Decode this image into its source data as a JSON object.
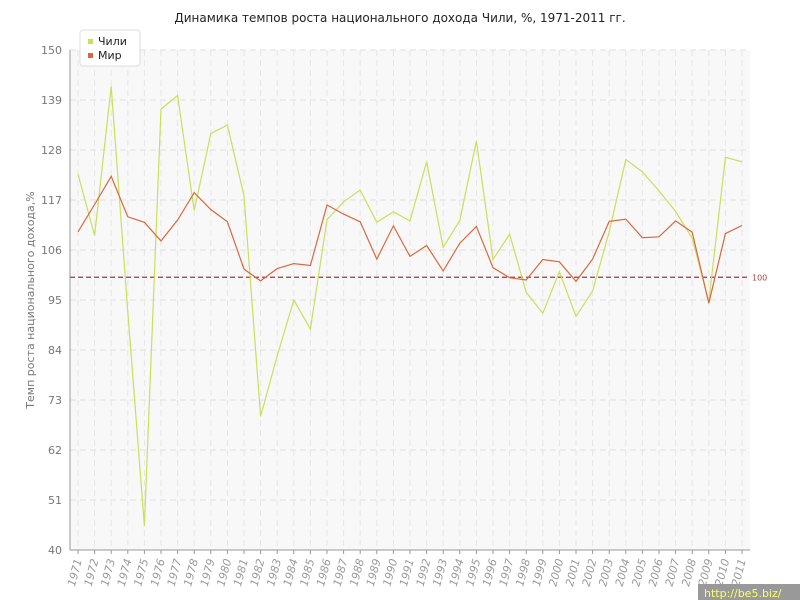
{
  "chart_data": {
    "type": "line",
    "title": "Динамика темпов роста национального дохода Чили, %, 1971-2011 гг.",
    "ylabel": "Темп роста национального дохода,%",
    "xlabel": "",
    "ylim": [
      40,
      150
    ],
    "yticks": [
      40,
      51,
      62,
      73,
      84,
      95,
      106,
      117,
      128,
      139,
      150
    ],
    "grid": true,
    "legend_position": "top-left",
    "x": [
      "1971",
      "1972",
      "1973",
      "1974",
      "1975",
      "1976",
      "1977",
      "1978",
      "1979",
      "1980",
      "1981",
      "1982",
      "1983",
      "1984",
      "1985",
      "1986",
      "1987",
      "1988",
      "1989",
      "1990",
      "1991",
      "1992",
      "1993",
      "1994",
      "1995",
      "1996",
      "1997",
      "1998",
      "1999",
      "2000",
      "2001",
      "2002",
      "2003",
      "2004",
      "2005",
      "2006",
      "2007",
      "2008",
      "2009",
      "2010",
      "2011"
    ],
    "series": [
      {
        "name": "Чили",
        "color": "#c8e05a",
        "values": [
          122.7,
          109.2,
          142.0,
          92.4,
          45.3,
          137.0,
          140.0,
          114.7,
          131.6,
          133.5,
          117.9,
          69.4,
          82.7,
          95.0,
          88.6,
          112.7,
          116.6,
          119.2,
          112.1,
          114.4,
          112.4,
          125.4,
          106.6,
          112.5,
          130.0,
          103.9,
          109.5,
          96.7,
          92.1,
          101.2,
          91.4,
          97.0,
          110.0,
          125.9,
          123.2,
          119.0,
          114.5,
          108.6,
          94.6,
          126.4,
          125.4
        ]
      },
      {
        "name": "Мир",
        "color": "#d9683f",
        "values": [
          110.0,
          116.0,
          122.2,
          113.3,
          112.1,
          108.0,
          112.6,
          118.6,
          114.9,
          112.2,
          101.8,
          99.2,
          101.9,
          103.0,
          102.6,
          115.9,
          113.9,
          112.2,
          104.0,
          111.3,
          104.6,
          107.0,
          101.4,
          107.5,
          111.2,
          102.1,
          99.9,
          99.4,
          103.9,
          103.4,
          99.1,
          104.0,
          112.3,
          112.8,
          108.7,
          108.9,
          112.4,
          109.9,
          94.3,
          109.6,
          111.4
        ]
      }
    ],
    "reference_line": {
      "value": 100,
      "label": "100",
      "color": "#aa3333"
    }
  },
  "watermark": "http://be5.biz/"
}
